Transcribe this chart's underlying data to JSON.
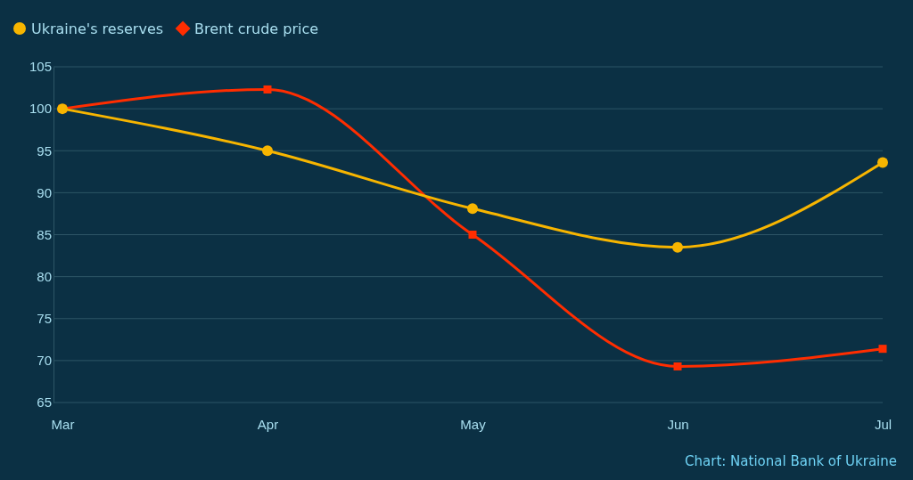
{
  "chart_data": {
    "type": "line",
    "categories": [
      "Mar",
      "Apr",
      "May",
      "Jun",
      "Jul"
    ],
    "series": [
      {
        "name": "Ukraine's reserves",
        "color": "#f7b500",
        "marker": "circle",
        "values": [
          100,
          95,
          88.1,
          83.5,
          93.6
        ]
      },
      {
        "name": "Brent crude price",
        "color": "#ff2d00",
        "marker": "square",
        "values": [
          100,
          102.3,
          85,
          69.3,
          71.4
        ]
      }
    ],
    "ylim": [
      65,
      105
    ],
    "yticks": [
      65,
      70,
      75,
      80,
      85,
      90,
      95,
      100,
      105
    ],
    "grid": "y",
    "legend": "top left",
    "line_style": "solid",
    "annotations": [
      "Chart: National Bank of Ukraine"
    ]
  }
}
